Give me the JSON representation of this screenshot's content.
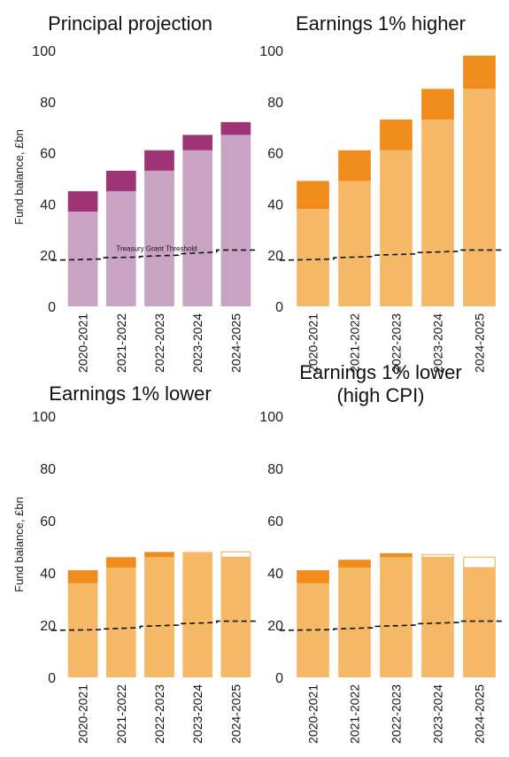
{
  "y_axis_label": "Fund balance, £bn",
  "colors": {
    "principal_base": "#c8a3c4",
    "principal_top": "#9e3475",
    "orange_base": "#f5b866",
    "orange_top": "#f08c1c",
    "deficit_outline": "#f5b866",
    "threshold_line": "#111111"
  },
  "chart_data": [
    {
      "type": "bar",
      "title": "Principal projection",
      "ylabel": "Fund balance, £bn",
      "ylim": [
        0,
        100
      ],
      "yticks": [
        0,
        20,
        40,
        60,
        80,
        100
      ],
      "categories": [
        "2020-2021",
        "2021-2022",
        "2022-2023",
        "2023-2024",
        "2024-2025"
      ],
      "series": [
        {
          "values": [
            37,
            45,
            53,
            61,
            67
          ]
        },
        {
          "values": [
            8,
            8,
            8,
            6,
            5
          ]
        }
      ],
      "threshold": [
        18,
        19,
        19.5,
        20.5,
        22
      ],
      "threshold_label": "Treasury Grant Threshold"
    },
    {
      "type": "bar",
      "title": "Earnings 1% higher",
      "ylim": [
        0,
        100
      ],
      "yticks": [
        0,
        20,
        40,
        60,
        80,
        100
      ],
      "categories": [
        "2020-2021",
        "2021-2022",
        "2022-2023",
        "2023-2024",
        "2024-2025"
      ],
      "series": [
        {
          "values": [
            38,
            49,
            61,
            73,
            85
          ]
        },
        {
          "values": [
            11,
            12,
            12,
            12,
            13
          ]
        }
      ],
      "threshold": [
        18,
        19,
        20,
        21,
        22
      ]
    },
    {
      "type": "bar",
      "title": "Earnings 1% lower",
      "ylabel": "Fund balance, £bn",
      "ylim": [
        0,
        100
      ],
      "yticks": [
        0,
        20,
        40,
        60,
        80,
        100
      ],
      "categories": [
        "2020-2021",
        "2021-2022",
        "2022-2023",
        "2023-2024",
        "2024-2025"
      ],
      "series": [
        {
          "values": [
            36,
            42,
            46,
            48,
            46
          ]
        },
        {
          "values": [
            5,
            4,
            2,
            0,
            0
          ]
        },
        {
          "values": [
            0,
            0,
            0,
            0,
            2
          ]
        }
      ],
      "threshold": [
        18,
        18.5,
        19.5,
        20.5,
        21.5
      ]
    },
    {
      "type": "bar",
      "title": "Earnings 1% lower\n(high CPI)",
      "ylim": [
        0,
        100
      ],
      "yticks": [
        0,
        20,
        40,
        60,
        80,
        100
      ],
      "categories": [
        "2020-2021",
        "2021-2022",
        "2022-2023",
        "2023-2024",
        "2024-2025"
      ],
      "series": [
        {
          "values": [
            36,
            42,
            46,
            46,
            42
          ]
        },
        {
          "values": [
            5,
            3,
            1.5,
            0,
            0
          ]
        },
        {
          "values": [
            0,
            0,
            0,
            1,
            4
          ]
        }
      ],
      "threshold": [
        18,
        18.5,
        19.5,
        20.5,
        21.5
      ]
    }
  ]
}
